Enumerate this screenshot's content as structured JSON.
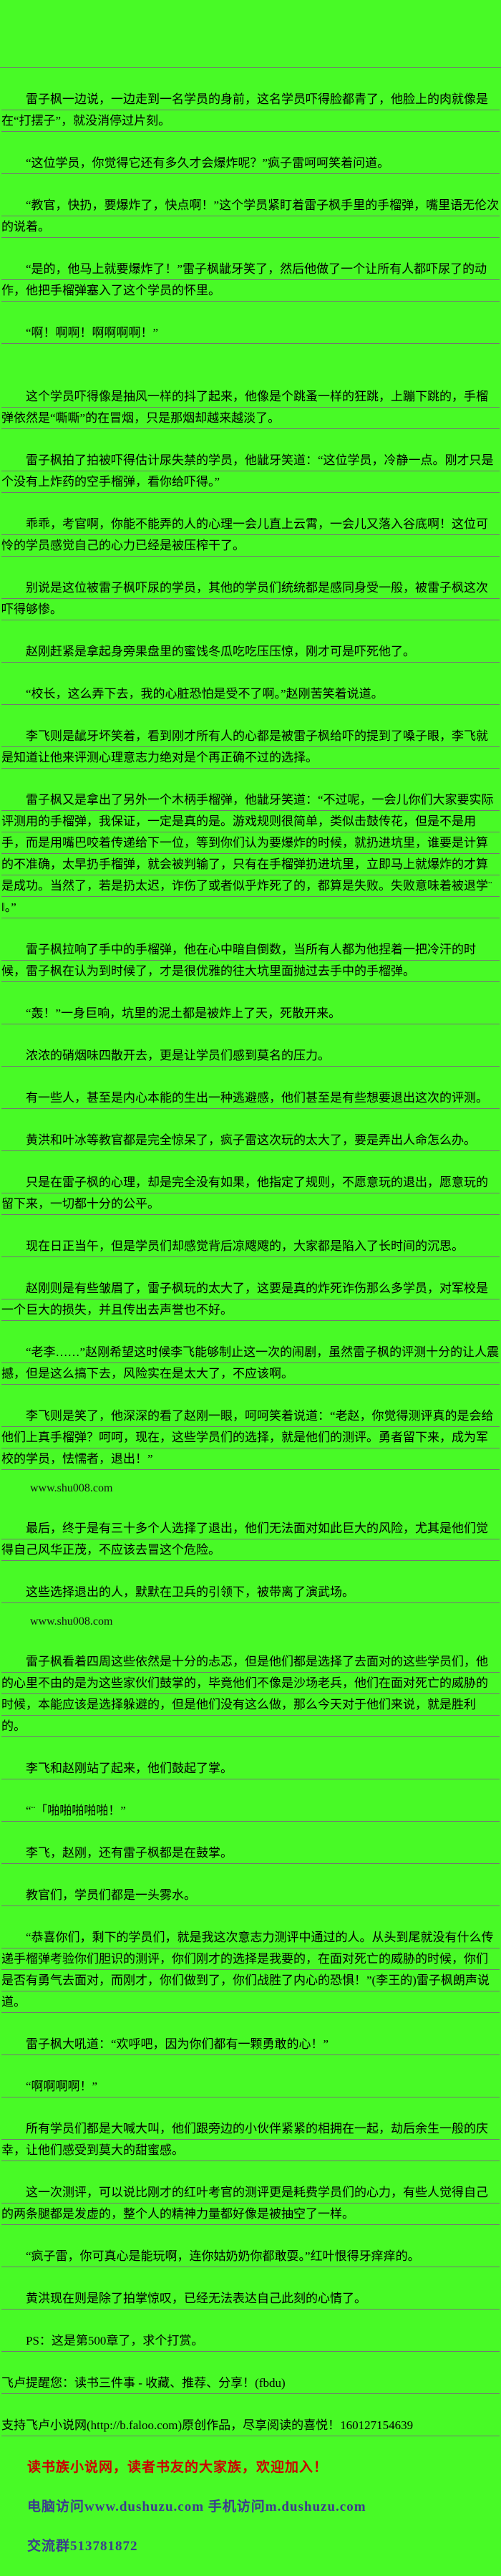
{
  "page": {
    "background_color": "#48fa26",
    "rule_color": "#757575",
    "text_color": "#000000"
  },
  "paragraphs": [
    {
      "type": "body",
      "text": "雷子枫一边说，一边走到一名学员的身前，这名学员吓得脸都青了，他脸上的肉就像是在“打摆子”，就没消停过片刻。"
    },
    {
      "type": "body",
      "text": "“这位学员，你觉得它还有多久才会爆炸呢？”疯子雷呵呵笑着问道。"
    },
    {
      "type": "body",
      "text": "“教官，快扔，要爆炸了，快点啊！”这个学员紧盯着雷子枫手里的手榴弹，嘴里语无伦次的说着。"
    },
    {
      "type": "body",
      "text": "“是的，他马上就要爆炸了！”雷子枫龇牙笑了，然后他做了一个让所有人都吓尿了的动作，他把手榴弹塞入了这个学员的怀里。"
    },
    {
      "type": "body",
      "text": "“啊！啊啊！啊啊啊啊！”"
    },
    {
      "type": "body",
      "extra_space_before": true,
      "text": "这个学员吓得像是抽风一样的抖了起来，他像是个跳蚤一样的狂跳，上蹦下跳的，手榴弹依然是“嘶嘶”的在冒烟，只是那烟却越来越淡了。"
    },
    {
      "type": "body",
      "text": "雷子枫拍了拍被吓得估计尿失禁的学员，他龇牙笑道：“这位学员，冷静一点。刚才只是个没有上炸药的空手榴弹，看你给吓得。”"
    },
    {
      "type": "body",
      "text": "乖乖，考官啊，你能不能弄的人的心理一会儿直上云霄，一会儿又落入谷底啊！这位可怜的学员感觉自己的心力已经是被压榨干了。"
    },
    {
      "type": "body",
      "text": "别说是这位被雷子枫吓尿的学员，其他的学员们统统都是感同身受一般，被雷子枫这次吓得够惨。"
    },
    {
      "type": "body",
      "text": "赵刚赶紧是拿起身旁果盘里的蜜饯冬瓜吃吃压压惊，刚才可是吓死他了。"
    },
    {
      "type": "body",
      "text": "“校长，这么弄下去，我的心脏恐怕是受不了啊。”赵刚苦笑着说道。"
    },
    {
      "type": "body",
      "text": "李飞则是龇牙坏笑着，看到刚才所有人的心都是被雷子枫给吓的提到了嗓子眼，李飞就是知道让他来评测心理意志力绝对是个再正确不过的选择。"
    },
    {
      "type": "body",
      "text": "雷子枫又是拿出了另外一个木柄手榴弹，他龇牙笑道：“不过呢，一会儿你们大家要实际评测用的手榴弹，我保证，一定是真的是。游戏规则很简单，类似击鼓传花，但是不是用手，而是用嘴巴咬着传递给下一位，等到你们认为要爆炸的时候，就扔进坑里，谁要是计算的不准确，太早扔手榴弹，就会被判输了，只有在手榴弹扔进坑里，立即马上就爆炸的才算是成功。当然了，若是扔太迟，诈伤了或者似乎炸死了的，都算是失败。失败意味着被退学¨‖。”"
    },
    {
      "type": "body",
      "text": "雷子枫拉响了手中的手榴弹，他在心中暗自倒数，当所有人都为他捏着一把冷汗的时候，雷子枫在认为到时候了，才是很优雅的往大坑里面抛过去手中的手榴弹。"
    },
    {
      "type": "body",
      "text": "“轰！”一身巨响，坑里的泥土都是被炸上了天，死散开来。"
    },
    {
      "type": "body",
      "text": "浓浓的硝烟味四散开去，更是让学员们感到莫名的压力。"
    },
    {
      "type": "body",
      "text": "有一些人，甚至是内心本能的生出一种逃避感，他们甚至是有些想要退出这次的评测。"
    },
    {
      "type": "body",
      "text": "黄洪和叶冰等教官都是完全惊呆了，疯子雷这次玩的太大了，要是弄出人命怎么办。"
    },
    {
      "type": "body",
      "text": "只是在雷子枫的心理，却是完全没有如果，他指定了规则，不愿意玩的退出，愿意玩的留下来，一切都十分的公平。"
    },
    {
      "type": "body",
      "text": "现在日正当午，但是学员们却感觉背后凉飕飕的，大家都是陷入了长时间的沉思。"
    },
    {
      "type": "body",
      "text": "赵刚则是有些皱眉了，雷子枫玩的太大了，这要是真的炸死诈伤那么多学员，对军校是一个巨大的损失，并且传出去声誉也不好。"
    },
    {
      "type": "body",
      "text": "“老李……”赵刚希望这时候李飞能够制止这一次的闹剧，虽然雷子枫的评测十分的让人震撼，但是这么搞下去，风险实在是太大了，不应该啊。"
    },
    {
      "type": "body",
      "text": "李飞则是笑了，他深深的看了赵刚一眼，呵呵笑着说道：“老赵，你觉得测评真的是会给他们上真手榴弹？呵呵，现在，这些学员们的选择，就是他们的测评。勇者留下来，成为军校的学员，怯懦者，退出！”"
    },
    {
      "type": "watermark",
      "text": "www.shu008.com"
    },
    {
      "type": "body",
      "text": "最后，终于是有三十多个人选择了退出，他们无法面对如此巨大的风险，尤其是他们觉得自己风华正茂，不应该去冒这个危险。"
    },
    {
      "type": "body",
      "text": "这些选择退出的人，默默在卫兵的引领下，被带离了演武场。"
    },
    {
      "type": "watermark",
      "text": "www.shu008.com"
    },
    {
      "type": "body",
      "text": "雷子枫看着四周这些依然是十分的忐忑，但是他们都是选择了去面对的这些学员们，他的心里不由的是为这些家伙们鼓掌的，毕竟他们不像是沙场老兵，他们在面对死亡的威胁的时候，本能应该是选择躲避的，但是他们没有这么做，那么今天对于他们来说，就是胜利的。"
    },
    {
      "type": "body",
      "text": "李飞和赵刚站了起来，他们鼓起了掌。"
    },
    {
      "type": "body",
      "text": "“¨「啪啪啪啪啪！”"
    },
    {
      "type": "body",
      "text": "李飞，赵刚，还有雷子枫都是在鼓掌。"
    },
    {
      "type": "body",
      "text": "教官们，学员们都是一头雾水。"
    },
    {
      "type": "body",
      "text": "“恭喜你们，剩下的学员们，就是我这次意志力测评中通过的人。从头到尾就没有什么传递手榴弹考验你们胆识的测评，你们刚才的选择是我要的，在面对死亡的威胁的时候，你们是否有勇气去面对，而刚才，你们做到了，你们战胜了内心的恐惧！”(李王的)雷子枫朗声说道。"
    },
    {
      "type": "body",
      "text": "雷子枫大吼道：“欢呼吧，因为你们都有一颗勇敢的心！”"
    },
    {
      "type": "body",
      "text": "“啊啊啊啊！”"
    },
    {
      "type": "body",
      "text": "所有学员们都是大喊大叫，他们跟旁边的小伙伴紧紧的相拥在一起，劫后余生一般的庆幸，让他们感受到莫大的甜蜜感。"
    },
    {
      "type": "body",
      "text": "这一次测评，可以说比刚才的红叶考官的测评更是耗费学员们的心力，有些人觉得自己的两条腿都是发虚的，整个人的精神力量都好像是被抽空了一样。"
    },
    {
      "type": "body",
      "text": "“疯子雷，你可真心是能玩啊，连你姑奶奶你都敢耍。”红叶恨得牙痒痒的。"
    },
    {
      "type": "body",
      "text": "黄洪现在则是除了拍掌惊叹，已经无法表达自己此刻的心情了。"
    },
    {
      "type": "body",
      "text": "PS：这是第500章了，求个打赏。"
    },
    {
      "type": "notice",
      "text": "飞卢提醒您：读书三件事 - 收藏、推荐、分享！(fbdu)"
    },
    {
      "type": "notice",
      "text": "支持飞卢小说网(http://b.faloo.com)原创作品，尽享阅读的喜悦！160127154639"
    }
  ],
  "footer": {
    "promo_lines": [
      {
        "text": "读书族小说网，读者书友的大家族，欢迎加入！",
        "color": "#cc0000"
      },
      {
        "text": "电脑访问www.dushuzu.com 手机访问m.dushuzu.com",
        "color": "#3b3b8f"
      },
      {
        "text": "交流群513781872",
        "color": "#3b3b8f"
      }
    ]
  }
}
